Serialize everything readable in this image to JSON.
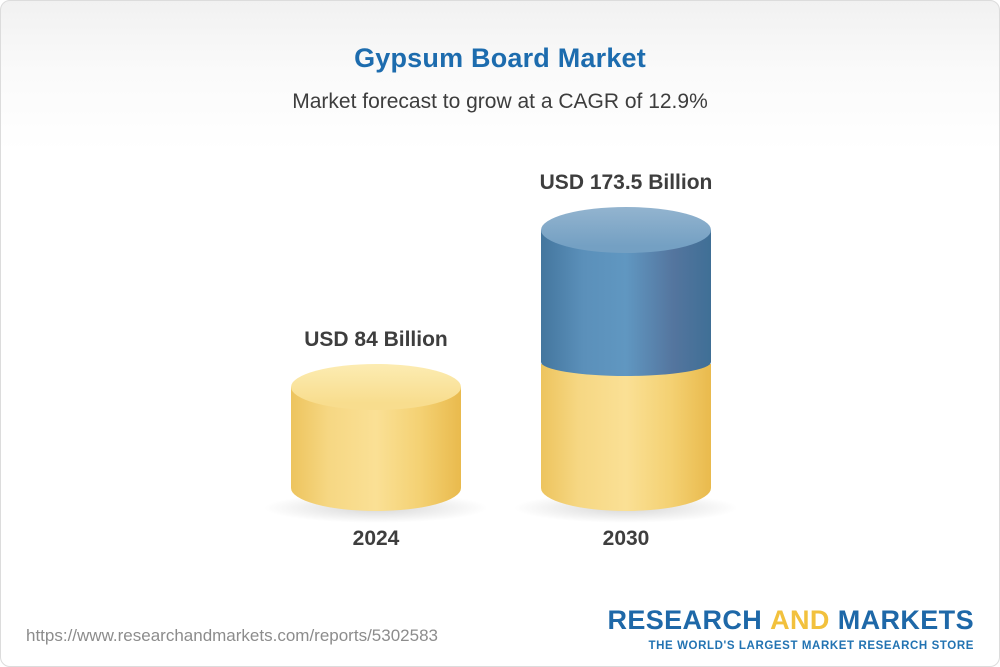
{
  "header": {
    "title": "Gypsum Board Market",
    "subtitle": "Market forecast to grow at a CAGR of 12.9%"
  },
  "chart_data": {
    "type": "bar",
    "variant": "3d-cylinder",
    "categories": [
      "2024",
      "2030"
    ],
    "values": [
      84,
      173.5
    ],
    "value_labels": [
      "USD 84 Billion",
      "USD 173.5 Billion"
    ],
    "unit": "USD Billion",
    "cagr_percent": 12.9,
    "title": "Gypsum Board Market",
    "subtitle": "Market forecast to grow at a CAGR of 12.9%",
    "series_colors": {
      "base_yellow": "#F5D377",
      "growth_blue": "#4C81AD"
    },
    "notes": "2030 bar is stacked: yellow base equals 2024 value (84), blue top segment represents growth to 173.5",
    "legend": "none",
    "grid": false,
    "axes_shown": false
  },
  "footer": {
    "url": "https://www.researchandmarkets.com/reports/5302583",
    "logo": {
      "research": "RESEARCH",
      "and": "AND",
      "markets": "MARKETS",
      "tagline": "THE WORLD'S LARGEST MARKET RESEARCH STORE"
    }
  },
  "colors": {
    "title_blue": "#1D6CAE",
    "subtitle_gray": "#3D3D3D",
    "label_gray": "#3E3E3E",
    "url_gray": "#8C8C8C",
    "logo_blue": "#1E68A8",
    "logo_gold": "#F2C13D"
  }
}
